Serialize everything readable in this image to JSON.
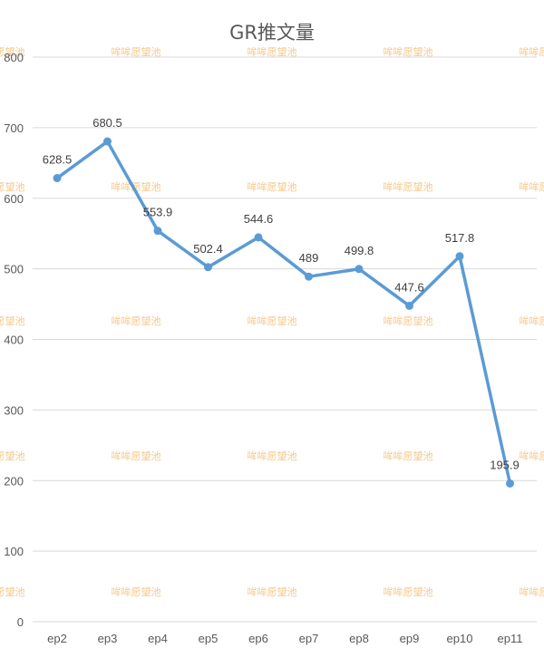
{
  "chart_data": {
    "type": "line",
    "title": "GR推文量",
    "xlabel": "",
    "ylabel": "",
    "categories": [
      "ep2",
      "ep3",
      "ep4",
      "ep5",
      "ep6",
      "ep7",
      "ep8",
      "ep9",
      "ep10",
      "ep11"
    ],
    "series": [
      {
        "values": [
          628.5,
          680.5,
          553.9,
          502.4,
          544.6,
          489,
          499.8,
          447.6,
          517.8,
          195.9
        ]
      }
    ],
    "data_labels": [
      "628.5",
      "680.5",
      "553.9",
      "502.4",
      "544.6",
      "489",
      "499.8",
      "447.6",
      "517.8",
      "195.9"
    ],
    "ylim": [
      0,
      800
    ],
    "yticks": [
      0,
      100,
      200,
      300,
      400,
      500,
      600,
      700,
      800
    ],
    "grid": true,
    "legend": "none",
    "line_color": "#5b9bd5",
    "gridline_color": "#d9d9d9"
  },
  "watermark": {
    "text": "哞哞愿望池",
    "color": "#f4c88a"
  }
}
